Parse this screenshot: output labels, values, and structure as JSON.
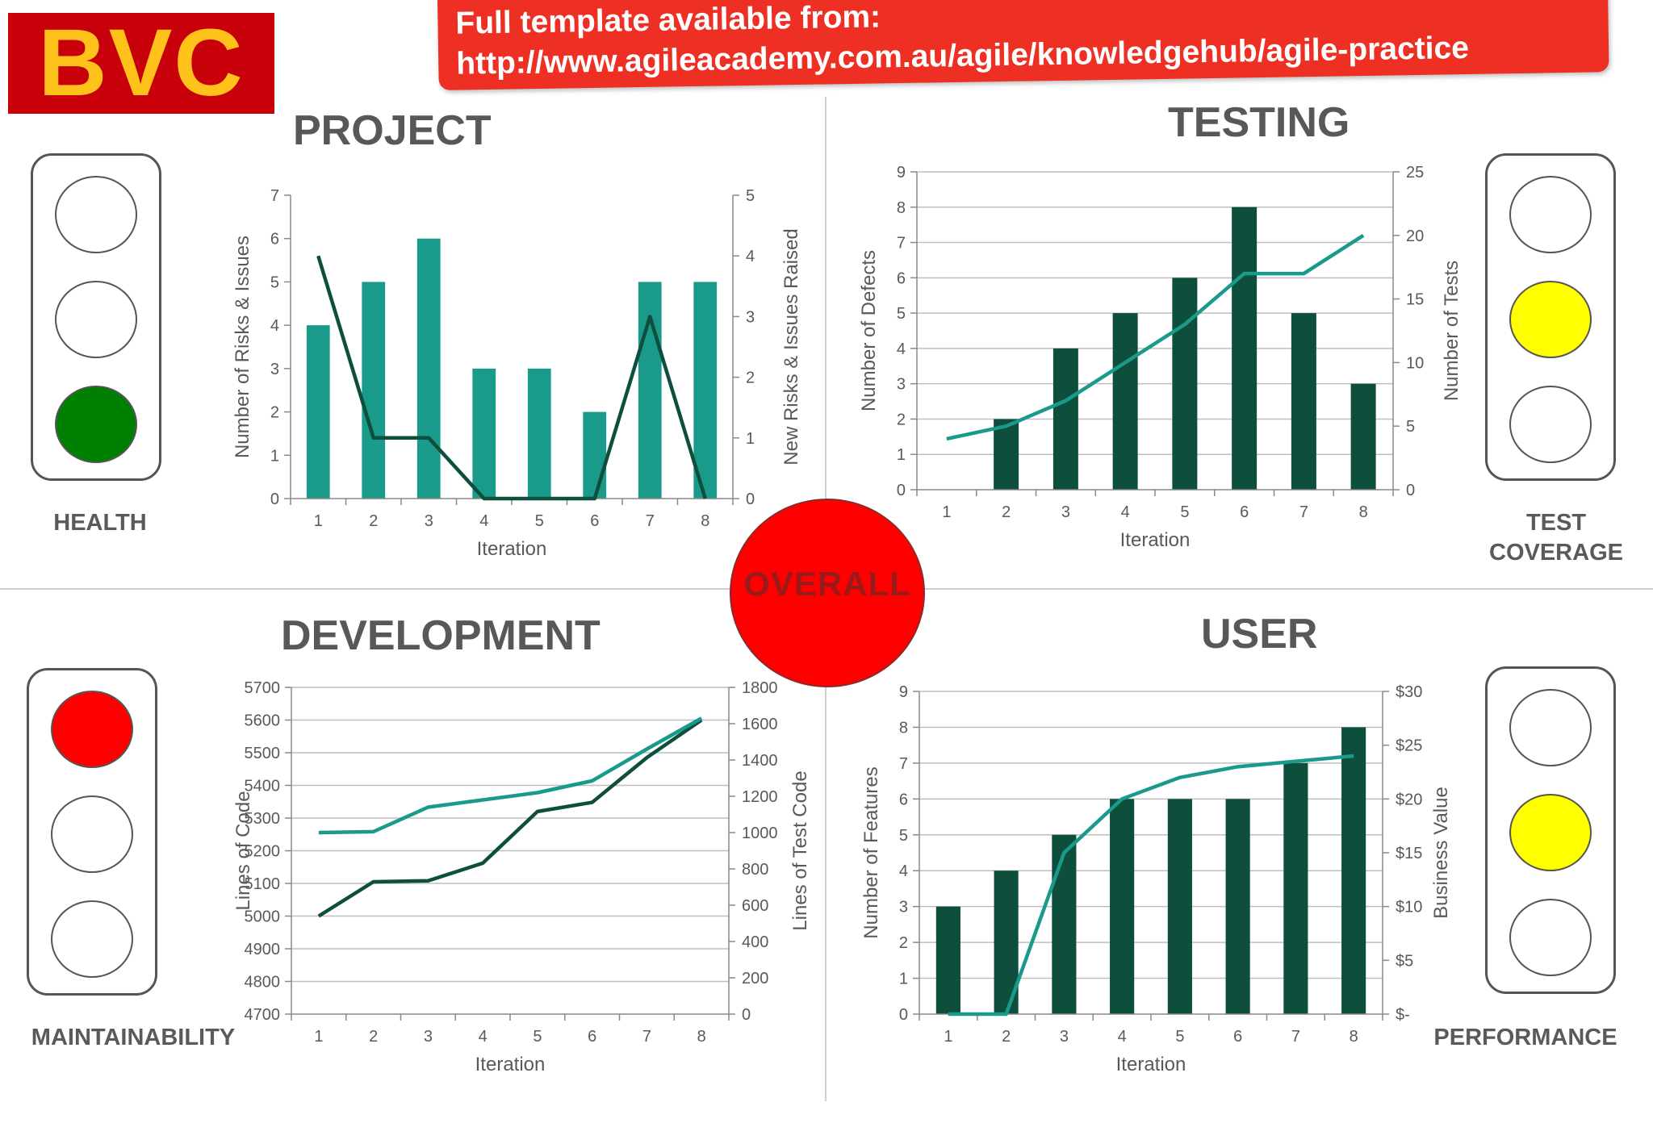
{
  "logo": {
    "text": "BVC"
  },
  "banner": {
    "line1": "Full template available from:",
    "line2": "http://www.agileacademy.com.au/agile/knowledgehub/agile-practice"
  },
  "overall": {
    "label": "OVERALL",
    "status_color": "#ff0000"
  },
  "lights": {
    "health": {
      "label": "HEALTH",
      "lamps": [
        "#ffffff",
        "#ffffff",
        "#008000"
      ]
    },
    "test_coverage": {
      "label_line1": "TEST",
      "label_line2": "COVERAGE",
      "lamps": [
        "#ffffff",
        "#ffff00",
        "#ffffff"
      ]
    },
    "maintainability": {
      "label": "MAINTAINABILITY",
      "lamps": [
        "#ff0000",
        "#ffffff",
        "#ffffff"
      ]
    },
    "performance": {
      "label": "PERFORMANCE",
      "lamps": [
        "#ffffff",
        "#ffff00",
        "#ffffff"
      ]
    }
  },
  "sections": {
    "project": "PROJECT",
    "testing": "TESTING",
    "development": "DEVELOPMENT",
    "user": "USER"
  },
  "chart_data": [
    {
      "id": "project",
      "type": "bar",
      "categories": [
        "1",
        "2",
        "3",
        "4",
        "5",
        "6",
        "7",
        "8"
      ],
      "xlabel": "Iteration",
      "ylabel": "Number of Risks & Issues",
      "y2label": "New Risks & Issues Raised",
      "ylim": [
        0,
        7
      ],
      "y2lim": [
        0,
        5
      ],
      "yticks": [
        "0",
        "1",
        "2",
        "3",
        "4",
        "5",
        "6",
        "7"
      ],
      "y2ticks": [
        "0",
        "1",
        "2",
        "3",
        "4",
        "5"
      ],
      "grid": false,
      "series": [
        {
          "type": "bar",
          "axis": "left",
          "color": "#1a9a8a",
          "values": [
            4,
            5,
            6,
            3,
            3,
            2,
            5,
            5
          ]
        },
        {
          "type": "line",
          "axis": "right",
          "color": "#0d4f3c",
          "values": [
            4,
            1,
            1,
            0,
            0,
            0,
            3,
            0
          ]
        }
      ]
    },
    {
      "id": "testing",
      "type": "bar",
      "categories": [
        "1",
        "2",
        "3",
        "4",
        "5",
        "6",
        "7",
        "8"
      ],
      "xlabel": "Iteration",
      "ylabel": "Number of Defects",
      "y2label": "Number of Tests",
      "ylim": [
        0,
        9
      ],
      "y2lim": [
        0,
        25
      ],
      "yticks": [
        "0",
        "1",
        "2",
        "3",
        "4",
        "5",
        "6",
        "7",
        "8",
        "9"
      ],
      "y2ticks": [
        "0",
        "5",
        "10",
        "15",
        "20",
        "25"
      ],
      "grid": true,
      "series": [
        {
          "type": "bar",
          "axis": "left",
          "color": "#0d4f3c",
          "values": [
            0,
            2,
            4,
            5,
            6,
            8,
            5,
            3
          ]
        },
        {
          "type": "line",
          "axis": "right",
          "color": "#1a9a8a",
          "values": [
            4,
            5,
            7,
            10,
            13,
            17,
            17,
            20
          ]
        }
      ]
    },
    {
      "id": "development",
      "type": "line",
      "categories": [
        "1",
        "2",
        "3",
        "4",
        "5",
        "6",
        "7",
        "8"
      ],
      "xlabel": "Iteration",
      "ylabel": "Lines of Code",
      "y2label": "Lines of Test Code",
      "ylim": [
        4700,
        5700
      ],
      "y2lim": [
        0,
        1800
      ],
      "yticks": [
        "4700",
        "4800",
        "4900",
        "5000",
        "5100",
        "5200",
        "5300",
        "5400",
        "5500",
        "5600",
        "5700"
      ],
      "y2ticks": [
        "0",
        "200",
        "400",
        "600",
        "800",
        "1000",
        "1200",
        "1400",
        "1600",
        "1800"
      ],
      "grid": true,
      "series": [
        {
          "type": "line",
          "axis": "left",
          "color": "#0d4f3c",
          "values": [
            5000,
            5105,
            5108,
            5162,
            5320,
            5348,
            5485,
            5600
          ]
        },
        {
          "type": "line",
          "axis": "right",
          "color": "#1a9a8a",
          "values": [
            1000,
            1005,
            1140,
            1180,
            1220,
            1285,
            1460,
            1630
          ]
        }
      ]
    },
    {
      "id": "user",
      "type": "bar",
      "categories": [
        "1",
        "2",
        "3",
        "4",
        "5",
        "6",
        "7",
        "8"
      ],
      "xlabel": "Iteration",
      "ylabel": "Number of Features",
      "y2label": "Business Value",
      "ylim": [
        0,
        9
      ],
      "y2lim": [
        0,
        30
      ],
      "yticks": [
        "0",
        "1",
        "2",
        "3",
        "4",
        "5",
        "6",
        "7",
        "8",
        "9"
      ],
      "y2ticks": [
        "$-",
        "$5",
        "$10",
        "$15",
        "$20",
        "$25",
        "$30"
      ],
      "grid": true,
      "series": [
        {
          "type": "bar",
          "axis": "left",
          "color": "#0d4f3c",
          "values": [
            3,
            4,
            5,
            6,
            6,
            6,
            7,
            8
          ]
        },
        {
          "type": "line",
          "axis": "right",
          "color": "#1a9a8a",
          "values": [
            0,
            0,
            15,
            20,
            22,
            23,
            23.5,
            24
          ]
        }
      ]
    }
  ]
}
